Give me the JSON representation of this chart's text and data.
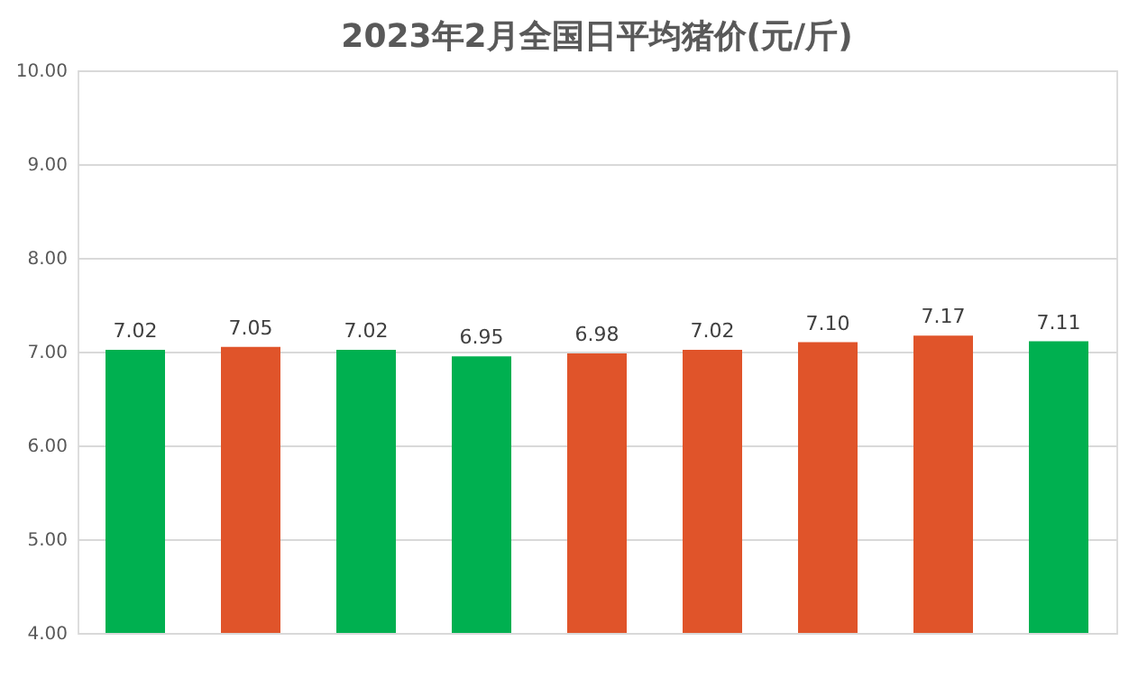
{
  "chart_data": {
    "type": "bar",
    "title": "2023年2月全国日平均猪价(元/斤)",
    "categories": [
      null,
      null,
      null,
      null,
      null,
      null,
      null,
      null,
      null
    ],
    "values": [
      7.02,
      7.05,
      7.02,
      6.95,
      6.98,
      7.02,
      7.1,
      7.17,
      7.11
    ],
    "colors": [
      "#00b050",
      "#e0542a",
      "#00b050",
      "#00b050",
      "#e0542a",
      "#e0542a",
      "#e0542a",
      "#e0542a",
      "#00b050"
    ],
    "value_labels": [
      "7.02",
      "7.05",
      "7.02",
      "6.95",
      "6.98",
      "7.02",
      "7.10",
      "7.17",
      "7.11"
    ],
    "ylim": [
      4,
      10
    ],
    "yticks": [
      {
        "value": 4,
        "label": "4.00"
      },
      {
        "value": 5,
        "label": "5.00"
      },
      {
        "value": 6,
        "label": "6.00"
      },
      {
        "value": 7,
        "label": "7.00"
      },
      {
        "value": 8,
        "label": "8.00"
      },
      {
        "value": 9,
        "label": "9.00"
      },
      {
        "value": 10,
        "label": "10.00"
      }
    ],
    "grid": "y",
    "tick_labels": "y"
  }
}
